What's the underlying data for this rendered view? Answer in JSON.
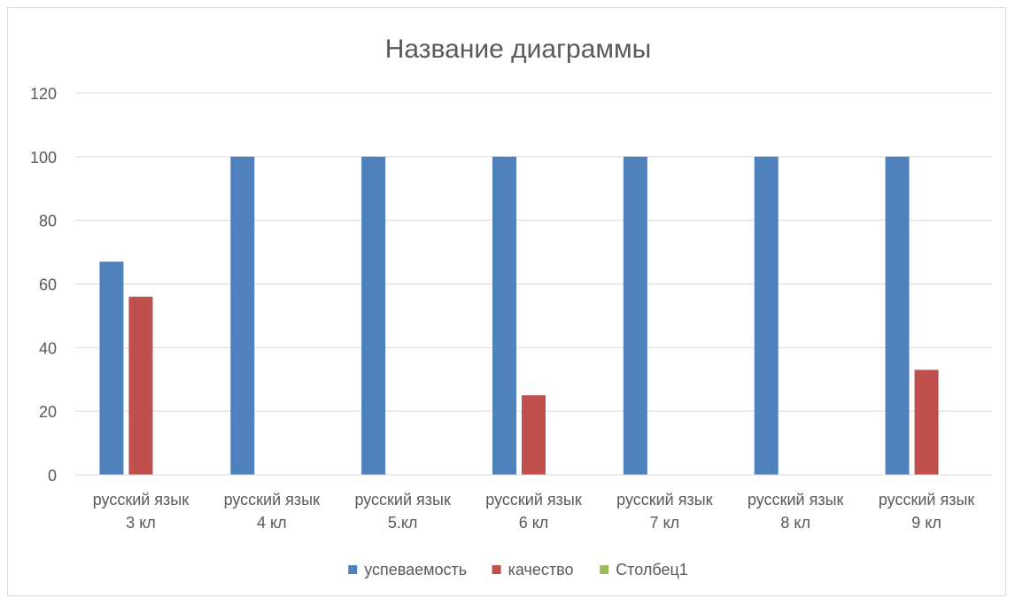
{
  "chart_data": {
    "type": "bar",
    "title": "Название диаграммы",
    "xlabel": "",
    "ylabel": "",
    "categories": [
      [
        "русский язык",
        "3 кл"
      ],
      [
        "русский язык",
        "4 кл"
      ],
      [
        "русский язык",
        "5.кл"
      ],
      [
        "русский язык",
        "6 кл"
      ],
      [
        "русский язык",
        "7 кл"
      ],
      [
        "русский язык",
        "8 кл"
      ],
      [
        "русский язык",
        "9 кл"
      ]
    ],
    "series": [
      {
        "name": "успеваемость",
        "color": "#4f81bd",
        "values": [
          67,
          100,
          100,
          100,
          100,
          100,
          100
        ]
      },
      {
        "name": "качество",
        "color": "#c0504d",
        "values": [
          56,
          0,
          0,
          25,
          0,
          0,
          33
        ]
      },
      {
        "name": "Столбец1",
        "color": "#9bbb59",
        "values": [
          0,
          0,
          0,
          0,
          0,
          0,
          0
        ]
      }
    ],
    "ylim": [
      0,
      120
    ],
    "yticks": [
      0,
      20,
      40,
      60,
      80,
      100,
      120
    ],
    "grid": true,
    "legend_position": "bottom"
  }
}
